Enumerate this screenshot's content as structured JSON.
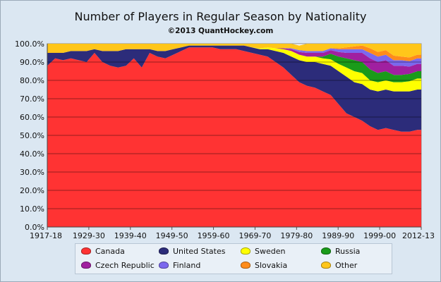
{
  "chart_data": {
    "type": "area",
    "title": "Number of Players in Regular Season by Nationality",
    "subtitle": "©2013 QuantHockey.com",
    "stacked": true,
    "percent": true,
    "x_tick_labels": [
      "1917-18",
      "1929-30",
      "1939-40",
      "1949-50",
      "1959-60",
      "1969-70",
      "1979-80",
      "1989-90",
      "1999-00",
      "2012-13"
    ],
    "y_tick_labels": [
      "0.0%",
      "10.0%",
      "20.0%",
      "30.0%",
      "40.0%",
      "50.0%",
      "60.0%",
      "70.0%",
      "80.0%",
      "90.0%",
      "100.0%"
    ],
    "ylim": [
      0,
      100
    ],
    "grid": true,
    "legend_position": "bottom",
    "x": [
      1918,
      1920,
      1922,
      1924,
      1926,
      1928,
      1930,
      1932,
      1934,
      1936,
      1938,
      1940,
      1942,
      1944,
      1946,
      1948,
      1950,
      1952,
      1954,
      1956,
      1958,
      1960,
      1962,
      1964,
      1966,
      1968,
      1970,
      1972,
      1974,
      1976,
      1978,
      1980,
      1982,
      1984,
      1986,
      1988,
      1990,
      1992,
      1994,
      1996,
      1998,
      2000,
      2002,
      2004,
      2006,
      2008,
      2010,
      2012,
      2013
    ],
    "series": [
      {
        "name": "Canada",
        "color": "#ff3333",
        "values": [
          88,
          92,
          91,
          92,
          91,
          90,
          95,
          90,
          88,
          87,
          88,
          92,
          87,
          95,
          93,
          92,
          94,
          96,
          98,
          98,
          98,
          98,
          97,
          97,
          97,
          96,
          95,
          94,
          93,
          90,
          87,
          83,
          79,
          77,
          76,
          74,
          72,
          67,
          62,
          60,
          58,
          55,
          53,
          54,
          53,
          52,
          52,
          53,
          53
        ]
      },
      {
        "name": "United States",
        "color": "#2c2c7a",
        "values": [
          7,
          3,
          4,
          4,
          5,
          6,
          2,
          6,
          8,
          9,
          9,
          5,
          10,
          2,
          3,
          4,
          3,
          2,
          1,
          1,
          1,
          1,
          2,
          2,
          2,
          3,
          3,
          3,
          4,
          6,
          8,
          10,
          12,
          13,
          14,
          15,
          16,
          18,
          20,
          19,
          20,
          20,
          21,
          21,
          21,
          22,
          22,
          22,
          22
        ]
      },
      {
        "name": "Sweden",
        "color": "#ffff00",
        "values": [
          0,
          0,
          0,
          0,
          0,
          0,
          0,
          0,
          0,
          0,
          0,
          0,
          0,
          0,
          0,
          0,
          0,
          0,
          0,
          0,
          0,
          0,
          0,
          0,
          0,
          0,
          0,
          0.5,
          1,
          1.5,
          2,
          3,
          3,
          3,
          3,
          3,
          3.5,
          4,
          5,
          6,
          6,
          5,
          5,
          5,
          5,
          5,
          5.5,
          6,
          6
        ]
      },
      {
        "name": "Russia",
        "color": "#1a9b1a",
        "values": [
          0,
          0,
          0,
          0,
          0,
          0,
          0,
          0,
          0,
          0,
          0,
          0,
          0,
          0,
          0,
          0,
          0,
          0,
          0,
          0,
          0,
          0,
          0,
          0,
          0,
          0,
          0,
          0,
          0,
          0,
          0,
          0,
          0,
          0,
          0,
          1,
          3,
          4,
          5,
          6,
          6,
          6,
          5,
          5,
          4,
          4,
          4,
          4,
          4
        ]
      },
      {
        "name": "Czech Republic",
        "color": "#a020a0",
        "values": [
          0,
          0,
          0,
          0,
          0,
          0,
          0,
          0,
          0,
          0,
          0,
          0,
          0,
          0,
          0,
          0,
          0,
          0,
          0,
          0,
          0,
          0,
          0,
          0,
          0,
          0,
          0,
          0,
          0,
          0,
          0.5,
          1,
          1.5,
          2,
          2,
          2,
          2,
          2.5,
          3,
          4,
          5,
          6,
          6,
          6,
          5,
          5,
          4,
          4,
          4
        ]
      },
      {
        "name": "Finland",
        "color": "#7b68ee",
        "values": [
          0,
          0,
          0,
          0,
          0,
          0,
          0,
          0,
          0,
          0,
          0,
          0,
          0,
          0,
          0,
          0,
          0,
          0,
          0,
          0,
          0,
          0,
          0,
          0,
          0,
          0,
          0,
          0,
          0,
          0,
          0,
          0.5,
          1,
          1,
          1,
          1,
          1,
          1.5,
          2,
          2,
          2,
          3,
          3,
          3,
          3,
          3,
          3,
          3,
          3
        ]
      },
      {
        "name": "Slovakia",
        "color": "#ff8c1a",
        "values": [
          0,
          0,
          0,
          0,
          0,
          0,
          0,
          0,
          0,
          0,
          0,
          0,
          0,
          0,
          0,
          0,
          0,
          0,
          0,
          0,
          0,
          0,
          0,
          0,
          0,
          0,
          0,
          0,
          0,
          0,
          0,
          0,
          0,
          0,
          0,
          0,
          0,
          0.5,
          1,
          1.5,
          2,
          2.5,
          2.5,
          2.5,
          2.5,
          2,
          2,
          2,
          2
        ]
      },
      {
        "name": "Other",
        "color": "#ffc61a",
        "values": [
          5,
          5,
          5,
          4,
          4,
          4,
          3,
          4,
          4,
          4,
          3,
          3,
          3,
          3,
          4,
          4,
          3,
          2,
          1,
          1,
          1,
          1,
          1,
          1,
          1,
          1,
          2,
          2.5,
          2,
          2.5,
          2.5,
          2.5,
          2.5,
          4,
          4,
          4,
          2.5,
          2.5,
          2,
          1.5,
          1,
          2.5,
          4.5,
          3.5,
          6.5,
          7,
          7.5,
          6,
          6
        ]
      }
    ]
  }
}
